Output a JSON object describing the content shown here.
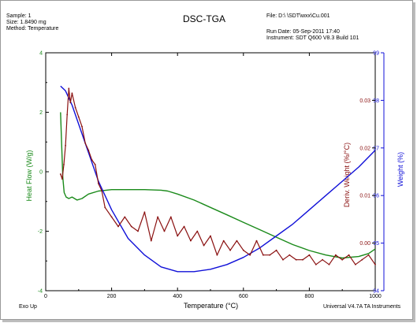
{
  "header": {
    "sample_line": "Sample: 1",
    "size_line": "Size:  1.8490 mg",
    "method_line": "Method: Temperature",
    "title": "DSC-TGA",
    "file_line": "File: D:\\   \\SDT\\wxx\\Cu.001",
    "run_date_line": "Run Date: 05-Sep-2011 17:40",
    "instrument_line": "Instrument: SDT Q600 V8.3 Build 101"
  },
  "footer": {
    "left": "Exo Up",
    "right": "Universal V4.7A TA Instruments"
  },
  "colors": {
    "heat_flow": "#1a8a1a",
    "weight": "#1010d8",
    "deriv_weight": "#8a1010",
    "left_axis": "#1a8a1a",
    "right_axis": "#1010d8",
    "deriv_axis": "#8a1010"
  },
  "chart_data": {
    "type": "line",
    "title": "DSC-TGA",
    "xlabel": "Temperature (°C)",
    "xlim": [
      0,
      1000
    ],
    "x_ticks": [
      "0",
      "200",
      "400",
      "600",
      "800",
      "1000"
    ],
    "y_left": {
      "label": "Heat Flow (W/g)",
      "lim": [
        -4,
        4
      ],
      "ticks": [
        "4",
        "2",
        "0",
        "-2",
        "-4"
      ]
    },
    "y_right_outer": {
      "label": "Weight (%)",
      "lim": [
        94,
        99
      ],
      "ticks": [
        "99",
        "98",
        "97",
        "96",
        "95",
        "94"
      ]
    },
    "y_right_inner": {
      "label": "Deriv. Weight (%/°C)",
      "lim": [
        -0.01,
        0.04
      ],
      "ticks": [
        "0.03",
        "0.02",
        "0.01",
        "0.00"
      ]
    },
    "grid": false,
    "legend": "none",
    "series": [
      {
        "name": "Heat Flow (W/g)",
        "axis": "left",
        "x": [
          45,
          48,
          52,
          56,
          62,
          70,
          80,
          95,
          110,
          130,
          160,
          200,
          250,
          300,
          350,
          370,
          400,
          450,
          500,
          550,
          600,
          650,
          700,
          750,
          800,
          850,
          900,
          950,
          980,
          1000
        ],
        "y": [
          2.0,
          1.0,
          -0.2,
          -0.7,
          -0.85,
          -0.9,
          -0.85,
          -0.95,
          -0.9,
          -0.75,
          -0.65,
          -0.6,
          -0.6,
          -0.6,
          -0.62,
          -0.65,
          -0.75,
          -0.95,
          -1.2,
          -1.45,
          -1.7,
          -1.95,
          -2.2,
          -2.45,
          -2.65,
          -2.8,
          -2.9,
          -2.85,
          -2.75,
          -2.6
        ]
      },
      {
        "name": "Weight (%)",
        "axis": "right_outer",
        "x": [
          45,
          60,
          80,
          100,
          130,
          160,
          200,
          250,
          300,
          350,
          400,
          450,
          500,
          550,
          600,
          650,
          700,
          750,
          800,
          850,
          900,
          950,
          1000
        ],
        "y": [
          98.3,
          98.2,
          97.9,
          97.5,
          96.9,
          96.3,
          95.7,
          95.1,
          94.75,
          94.5,
          94.4,
          94.4,
          94.45,
          94.55,
          94.7,
          94.9,
          95.15,
          95.4,
          95.7,
          96.0,
          96.3,
          96.6,
          96.95
        ]
      },
      {
        "name": "Deriv. Weight (%/°C)",
        "axis": "right_inner",
        "x": [
          45,
          50,
          55,
          60,
          65,
          70,
          75,
          80,
          90,
          100,
          110,
          120,
          130,
          140,
          150,
          160,
          170,
          180,
          200,
          220,
          240,
          260,
          280,
          300,
          320,
          340,
          360,
          380,
          400,
          420,
          440,
          460,
          480,
          500,
          520,
          540,
          560,
          580,
          600,
          620,
          640,
          660,
          680,
          700,
          720,
          740,
          760,
          780,
          800,
          820,
          840,
          860,
          880,
          900,
          920,
          940,
          960,
          980,
          1000
        ],
        "y": [
          0.0145,
          0.0135,
          0.0165,
          0.0205,
          0.027,
          0.0325,
          0.0295,
          0.0315,
          0.0285,
          0.0265,
          0.0245,
          0.021,
          0.0195,
          0.0175,
          0.0165,
          0.0125,
          0.011,
          0.0075,
          0.0055,
          0.0035,
          0.0055,
          0.0035,
          0.0025,
          0.0065,
          0.0005,
          0.0055,
          0.0025,
          0.0055,
          0.0015,
          0.0035,
          0.0005,
          0.0025,
          -0.0005,
          0.0015,
          -0.0025,
          0.0005,
          -0.0015,
          0.0005,
          -0.0015,
          -0.0025,
          0.0005,
          -0.0025,
          -0.0025,
          -0.0015,
          -0.0035,
          -0.0025,
          -0.0035,
          -0.0035,
          -0.0025,
          -0.0045,
          -0.0035,
          -0.0045,
          -0.0025,
          -0.0035,
          -0.0025,
          -0.0045,
          -0.0035,
          -0.0025,
          -0.0045
        ]
      }
    ]
  }
}
